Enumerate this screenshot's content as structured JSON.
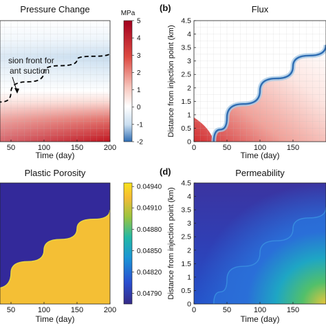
{
  "colors": {
    "rdbu_low": "#2f6db3",
    "rdbu_light": "#c9def0",
    "white": "#ffffff",
    "rdbu_pink": "#f4b7b1",
    "rdbu_high": "#a3001e",
    "parula_1": "#352a87",
    "parula_2": "#2a4fd0",
    "parula_3": "#1b95d6",
    "parula_4": "#23b8a5",
    "parula_5": "#9bc43f",
    "parula_6": "#f5bc34",
    "parula_7": "#f9e31c",
    "front_line": "#000000"
  },
  "chart_data": [
    {
      "id": "a",
      "type": "heatmap",
      "title": "Pressure Change",
      "panel_label": "",
      "xlabel": "Time (day)",
      "ylabel": "",
      "x_ticks": [
        "50",
        "100",
        "150",
        "200"
      ],
      "xlim": [
        0,
        200
      ],
      "ylim": [
        0,
        4.5
      ],
      "grid": true,
      "colormap": "red-white-blue",
      "colorbar": {
        "unit": "MPa",
        "ticks": [
          "5",
          "4",
          "3",
          "2",
          "1",
          "0",
          "-1",
          "-2"
        ],
        "range": [
          -2,
          5
        ]
      },
      "annotations": [
        {
          "text": "sion front for"
        },
        {
          "text": "ant suction"
        }
      ],
      "front_curve": {
        "style": "dashed",
        "x": [
          0,
          20,
          50,
          100,
          150,
          200
        ],
        "y": [
          0.0,
          1.1,
          1.85,
          2.6,
          3.05,
          3.3
        ]
      }
    },
    {
      "id": "b",
      "type": "heatmap",
      "title": "Flux",
      "panel_label": "(b)",
      "xlabel": "Time (day)",
      "ylabel": "Distance from injection point (km)",
      "x_ticks": [
        "0",
        "50",
        "100",
        "150"
      ],
      "y_ticks": [
        "0",
        "0.5",
        "1",
        "1.5",
        "2",
        "2.5",
        "3",
        "3.5",
        "4",
        "4.5"
      ],
      "xlim": [
        0,
        200
      ],
      "ylim": [
        0,
        4.5
      ],
      "grid": true,
      "colormap": "red-white-blue",
      "front_curve": {
        "x": [
          30,
          50,
          100,
          150,
          200
        ],
        "y": [
          0.0,
          0.9,
          1.9,
          2.8,
          3.6
        ]
      }
    },
    {
      "id": "c",
      "type": "heatmap",
      "title": "Plastic Porosity",
      "panel_label": "",
      "xlabel": "Time (day)",
      "ylabel": "",
      "x_ticks": [
        "50",
        "100",
        "150",
        "200"
      ],
      "xlim": [
        0,
        200
      ],
      "ylim": [
        0,
        4.5
      ],
      "colormap": "parula",
      "colorbar": {
        "unit": "",
        "ticks": [
          "0.04940",
          "0.04910",
          "0.04880",
          "0.04850",
          "0.04820",
          "0.04790"
        ],
        "range": [
          0.04775,
          0.04945
        ]
      },
      "front_curve": {
        "x": [
          0,
          50,
          100,
          150,
          200
        ],
        "y": [
          0.0,
          1.15,
          2.0,
          2.8,
          3.5
        ]
      }
    },
    {
      "id": "d",
      "type": "heatmap",
      "title": "Permeability",
      "panel_label": "(d)",
      "xlabel": "Time (day)",
      "ylabel": "Distance from injection point (km)",
      "x_ticks": [
        "0",
        "50",
        "100",
        "150"
      ],
      "y_ticks": [
        "0",
        "0.5",
        "1",
        "1.5",
        "2",
        "2.5",
        "3",
        "3.5",
        "4",
        "4.5"
      ],
      "xlim": [
        0,
        200
      ],
      "ylim": [
        0,
        4.5
      ],
      "colormap": "parula",
      "front_curve": {
        "x": [
          30,
          50,
          100,
          150,
          200
        ],
        "y": [
          0.0,
          0.9,
          1.9,
          2.8,
          3.6
        ]
      }
    }
  ]
}
